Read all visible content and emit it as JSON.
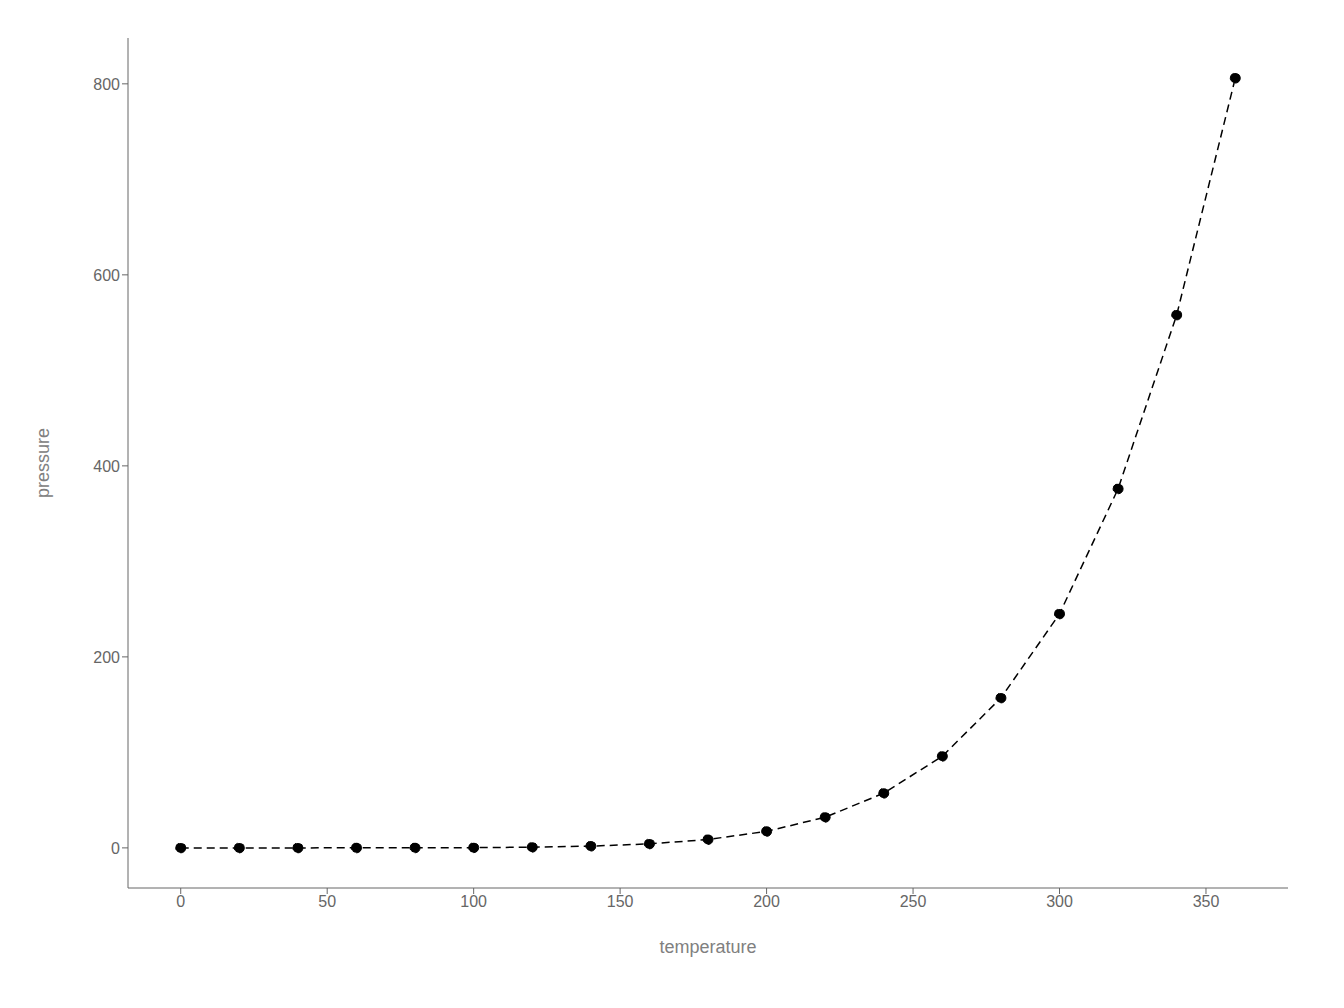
{
  "chart_data": {
    "type": "line",
    "xlabel": "temperature",
    "ylabel": "pressure",
    "x": [
      0,
      20,
      40,
      60,
      80,
      100,
      120,
      140,
      160,
      180,
      200,
      220,
      240,
      260,
      280,
      300,
      320,
      340,
      360
    ],
    "values": [
      0.0002,
      0.0012,
      0.006,
      0.03,
      0.09,
      0.27,
      0.75,
      1.85,
      4.2,
      8.8,
      17.3,
      32.1,
      57.3,
      96.0,
      157.0,
      245.0,
      376.0,
      558.0,
      806.0
    ],
    "xlim": [
      -18,
      378
    ],
    "ylim": [
      -42,
      848
    ],
    "xticks": [
      0,
      50,
      100,
      150,
      200,
      250,
      300,
      350
    ],
    "yticks": [
      0,
      200,
      400,
      600,
      800
    ],
    "color": "#000000",
    "line_style": "dashed",
    "marker": "circle",
    "grid": false
  }
}
